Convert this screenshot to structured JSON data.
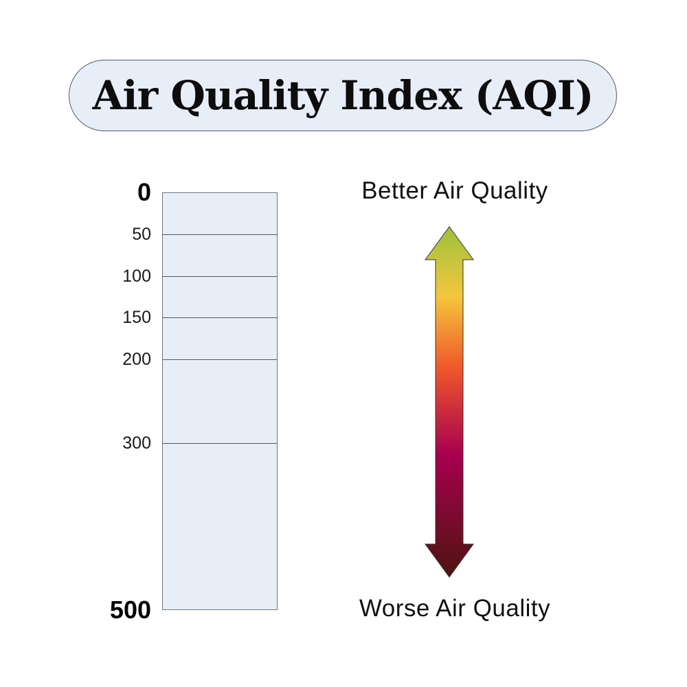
{
  "title": "Air Quality Index (AQI)",
  "scale": {
    "ticks": [
      {
        "value": 0,
        "label": "0",
        "major": true
      },
      {
        "value": 50,
        "label": "50",
        "major": false
      },
      {
        "value": 100,
        "label": "100",
        "major": false
      },
      {
        "value": 150,
        "label": "150",
        "major": false
      },
      {
        "value": 200,
        "label": "200",
        "major": false
      },
      {
        "value": 300,
        "label": "300",
        "major": false
      },
      {
        "value": 500,
        "label": "500",
        "major": true
      }
    ],
    "divider_values": [
      50,
      100,
      150,
      200,
      300
    ],
    "range": [
      0,
      500
    ]
  },
  "arrow": {
    "top_label": "Better Air Quality",
    "bottom_label": "Worse Air Quality",
    "gradient_colors": [
      "#9dc13c",
      "#f4c63d",
      "#f0592a",
      "#a8004f",
      "#4e1410"
    ]
  },
  "colors": {
    "pill_fill": "#e8eef8",
    "scale_fill": "#e8eef8"
  }
}
